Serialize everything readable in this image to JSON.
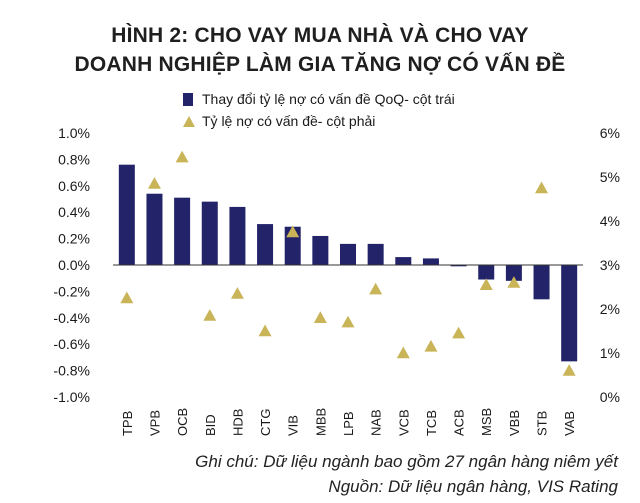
{
  "figure": {
    "title_line1": "HÌNH 2: CHO VAY MUA NHÀ VÀ CHO VAY",
    "title_line2": "DOANH NGHIỆP LÀM GIA TĂNG NỢ CÓ VẤN ĐỀ",
    "note": "Ghi chú: Dữ liệu ngành bao gồm 27 ngân hàng niêm yết",
    "source": "Nguồn: Dữ liệu ngân hàng, VIS Rating"
  },
  "colors": {
    "bar": "#23236a",
    "marker": "#c9b458",
    "zero_line": "#333333"
  },
  "chart_data": {
    "type": "bar",
    "categories": [
      "TPB",
      "VPB",
      "OCB",
      "BID",
      "HDB",
      "CTG",
      "VIB",
      "MBB",
      "LPB",
      "NAB",
      "VCB",
      "TCB",
      "ACB",
      "MSB",
      "VBB",
      "STB",
      "VAB"
    ],
    "series": [
      {
        "name": "Thay đổi tỷ lệ nợ có vấn đề QoQ- cột trái",
        "type": "bar",
        "axis": "left",
        "values": [
          0.76,
          0.54,
          0.51,
          0.48,
          0.44,
          0.31,
          0.29,
          0.22,
          0.16,
          0.16,
          0.06,
          0.05,
          -0.01,
          -0.11,
          -0.12,
          -0.26,
          -0.73
        ]
      },
      {
        "name": "Tỷ lệ nợ có vấn đề- cột phải",
        "type": "scatter",
        "marker": "triangle",
        "axis": "right",
        "values": [
          2.25,
          4.85,
          5.45,
          1.85,
          2.35,
          1.5,
          3.75,
          1.8,
          1.7,
          2.45,
          1.0,
          1.15,
          1.45,
          2.55,
          2.6,
          4.75,
          0.6
        ]
      }
    ],
    "y_left": {
      "ylim": [
        -1.0,
        1.0
      ],
      "ticks": [
        "1.0%",
        "0.8%",
        "0.6%",
        "0.4%",
        "0.2%",
        "0.0%",
        "-0.2%",
        "-0.4%",
        "-0.6%",
        "-0.8%",
        "-1.0%"
      ]
    },
    "y_right": {
      "ylim": [
        0,
        6
      ],
      "ticks": [
        "6%",
        "5%",
        "4%",
        "3%",
        "2%",
        "1%",
        "0%"
      ]
    },
    "grid": false,
    "legend_position": "top"
  }
}
